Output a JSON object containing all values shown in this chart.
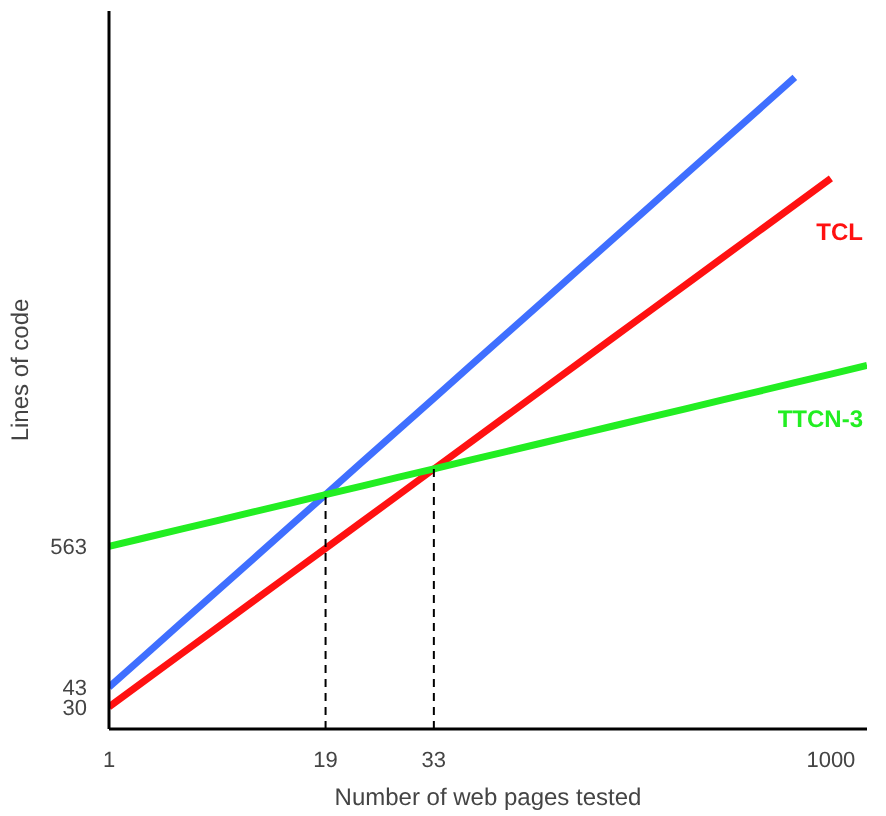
{
  "chart_data": {
    "type": "line",
    "xlabel": "Number of web pages tested",
    "ylabel": "Lines of code",
    "log": "y",
    "ylim": [
      20,
      10000000
    ],
    "yticks": [
      30,
      43,
      563
    ],
    "categories": [
      "1",
      null,
      null,
      null,
      null,
      null,
      "19",
      null,
      null,
      "33",
      null,
      null,
      null,
      null,
      null,
      null,
      null,
      null,
      null,
      null,
      "1000",
      null
    ],
    "series": [
      {
        "color": "#3f6fff",
        "values": [
          43,
          77.3,
          139,
          250,
          449,
          807,
          1451,
          2609,
          4690,
          8430,
          15150,
          27240,
          48970,
          88030,
          158200,
          284400,
          511300,
          919200,
          1652000,
          2971000,
          null,
          null
        ]
      },
      {
        "name": "TCL",
        "color": "#ff1111",
        "values": [
          30,
          48.6,
          78.8,
          127.7,
          207,
          335.5,
          543.6,
          881,
          1427,
          2314,
          3751,
          6079,
          9851,
          15970,
          25880,
          41940,
          67980,
          110200,
          178600,
          289400,
          469000,
          null
        ]
      },
      {
        "name": "TTCN-3",
        "color": "#22ee22",
        "values": [
          563,
          659,
          772,
          903,
          1057,
          1237,
          1448,
          1696,
          1984,
          2323,
          2719,
          3183,
          3726,
          4361,
          5105,
          5975,
          6993,
          8186,
          9583,
          11220,
          13130,
          15370
        ]
      }
    ],
    "ref_lines": [
      {
        "axis": "x",
        "value": "19",
        "line_style": "dashed",
        "color": "#000000"
      },
      {
        "axis": "x",
        "value": "33",
        "line_style": "dashed",
        "color": "#000000"
      }
    ],
    "grid": false,
    "legend": false,
    "marker": "none",
    "line_style": "solid"
  }
}
